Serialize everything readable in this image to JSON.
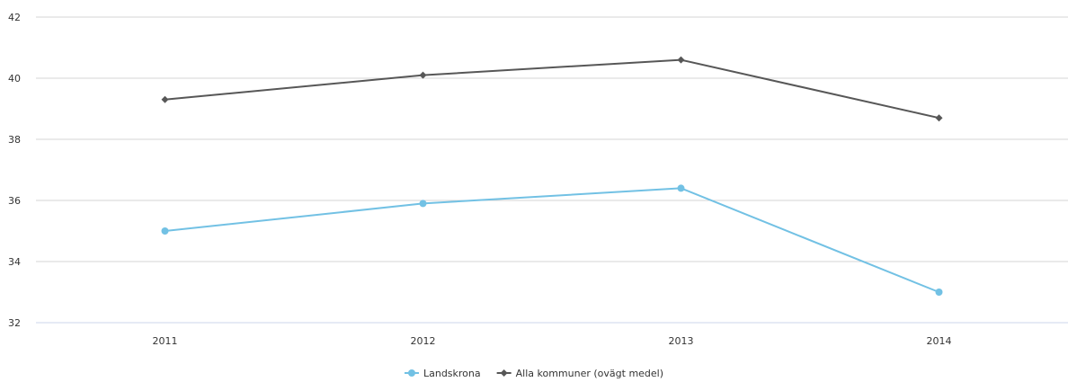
{
  "chart_data": {
    "type": "line",
    "title": "",
    "xlabel": "",
    "ylabel": "",
    "categories": [
      "2011",
      "2012",
      "2013",
      "2014"
    ],
    "ylim": [
      32,
      42
    ],
    "yticks": [
      32,
      34,
      36,
      38,
      40,
      42
    ],
    "grid": true,
    "legend_position": "bottom-center",
    "series": [
      {
        "name": "Landskrona",
        "values": [
          35.0,
          35.9,
          36.4,
          33.0
        ],
        "color": "#72c1e4",
        "marker": "circle"
      },
      {
        "name": "Alla kommuner (ovägt medel)",
        "values": [
          39.3,
          40.1,
          40.6,
          38.7
        ],
        "color": "#575757",
        "marker": "diamond"
      }
    ]
  }
}
